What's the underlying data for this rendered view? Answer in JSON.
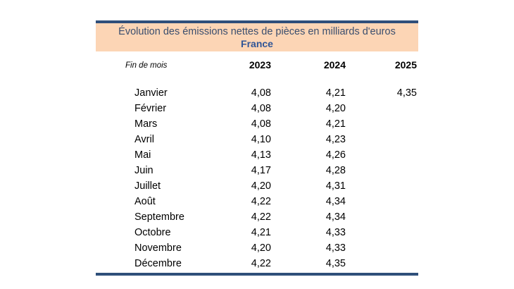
{
  "header": {
    "title": "Évolution des émissions nettes de pièces en milliards d'euros",
    "subtitle": "France"
  },
  "columns": {
    "label": "Fin de mois",
    "years": [
      "2023",
      "2024",
      "2025"
    ]
  },
  "rows": [
    {
      "month": "Janvier",
      "v2023": "4,08",
      "v2024": "4,21",
      "v2025": "4,35"
    },
    {
      "month": "Février",
      "v2023": "4,08",
      "v2024": "4,20",
      "v2025": ""
    },
    {
      "month": "Mars",
      "v2023": "4,08",
      "v2024": "4,21",
      "v2025": ""
    },
    {
      "month": "Avril",
      "v2023": "4,10",
      "v2024": "4,23",
      "v2025": ""
    },
    {
      "month": "Mai",
      "v2023": "4,13",
      "v2024": "4,26",
      "v2025": ""
    },
    {
      "month": "Juin",
      "v2023": "4,17",
      "v2024": "4,28",
      "v2025": ""
    },
    {
      "month": "Juillet",
      "v2023": "4,20",
      "v2024": "4,31",
      "v2025": ""
    },
    {
      "month": "Août",
      "v2023": "4,22",
      "v2024": "4,34",
      "v2025": ""
    },
    {
      "month": "Septembre",
      "v2023": "4,22",
      "v2024": "4,34",
      "v2025": ""
    },
    {
      "month": "Octobre",
      "v2023": "4,21",
      "v2024": "4,33",
      "v2025": ""
    },
    {
      "month": "Novembre",
      "v2023": "4,20",
      "v2024": "4,33",
      "v2025": ""
    },
    {
      "month": "Décembre",
      "v2023": "4,22",
      "v2024": "4,35",
      "v2025": ""
    }
  ]
}
